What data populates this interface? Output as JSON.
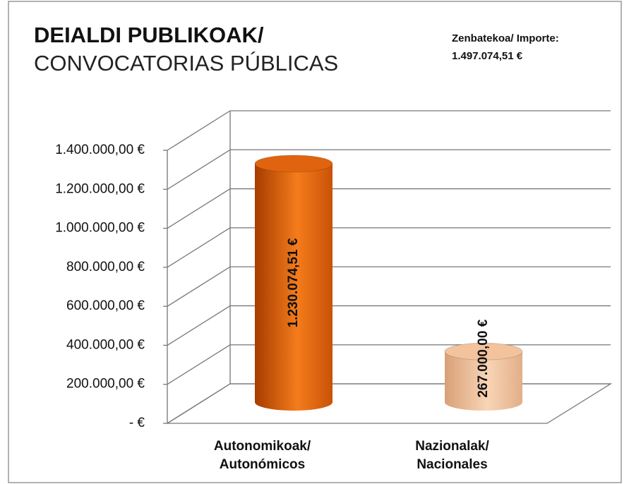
{
  "chart_data": {
    "type": "bar3d",
    "title": "DEIALDI PUBLIKOAK/",
    "subtitle": "CONVOCATORIAS PÚBLICAS",
    "annotations": [
      "Zenbatekoa/ Importe:",
      "1.497.074,51 €"
    ],
    "categories": [
      "Autonomikoak/ Autonómicos",
      "Nazionalak/ Nacionales"
    ],
    "series": [
      {
        "colors": [
          "#e0640f",
          "#f2c39d"
        ],
        "values": [
          1230074.51,
          267000
        ],
        "value_labels": [
          "1.230.074,51 €",
          "267.000,00 €"
        ]
      }
    ],
    "ylim": [
      0,
      1400000
    ],
    "yticks": [
      {
        "value": 0,
        "label": "-  €"
      },
      {
        "value": 200000,
        "label": "200.000,00 €"
      },
      {
        "value": 400000,
        "label": "400.000,00 €"
      },
      {
        "value": 600000,
        "label": "600.000,00 €"
      },
      {
        "value": 800000,
        "label": "800.000,00 €"
      },
      {
        "value": 1000000,
        "label": "1.000.000,00 €"
      },
      {
        "value": 1200000,
        "label": "1.200.000,00 €"
      },
      {
        "value": 1400000,
        "label": "1.400.000,00 €"
      }
    ],
    "grid": true
  }
}
